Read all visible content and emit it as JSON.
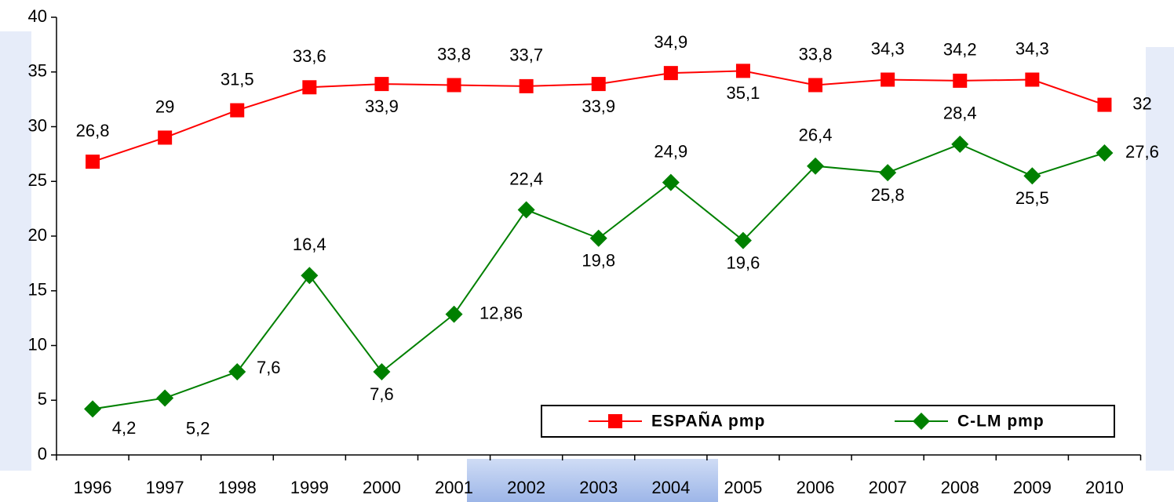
{
  "chart_data": {
    "type": "line",
    "categories": [
      "1996",
      "1997",
      "1998",
      "1999",
      "2000",
      "2001",
      "2002",
      "2003",
      "2004",
      "2005",
      "2006",
      "2007",
      "2008",
      "2009",
      "2010"
    ],
    "series": [
      {
        "name": "ESPAÑA pmp",
        "color": "#ff0000",
        "marker": "square",
        "values": [
          26.8,
          29,
          31.5,
          33.6,
          33.9,
          33.8,
          33.7,
          33.9,
          34.9,
          35.1,
          33.8,
          34.3,
          34.2,
          34.3,
          32
        ],
        "value_labels": [
          "26,8",
          "29",
          "31,5",
          "33,6",
          "33,9",
          "33,8",
          "33,7",
          "33,9",
          "34,9",
          "35,1",
          "33,8",
          "34,3",
          "34,2",
          "34,3",
          "32"
        ]
      },
      {
        "name": "C-LM pmp",
        "color": "#008000",
        "marker": "diamond",
        "values": [
          4.2,
          5.2,
          7.6,
          16.4,
          7.6,
          12.86,
          22.4,
          19.8,
          24.9,
          19.6,
          26.4,
          25.8,
          28.4,
          25.5,
          27.6
        ],
        "value_labels": [
          "4,2",
          "5,2",
          "7,6",
          "16,4",
          "7,6",
          "12,86",
          "22,4",
          "19,8",
          "24,9",
          "19,6",
          "26,4",
          "25,8",
          "28,4",
          "25,5",
          "27,6"
        ]
      }
    ],
    "ylim": [
      0,
      40
    ],
    "yticks": [
      0,
      5,
      10,
      15,
      20,
      25,
      30,
      35,
      40
    ],
    "grid": false,
    "legend": "lower right"
  }
}
